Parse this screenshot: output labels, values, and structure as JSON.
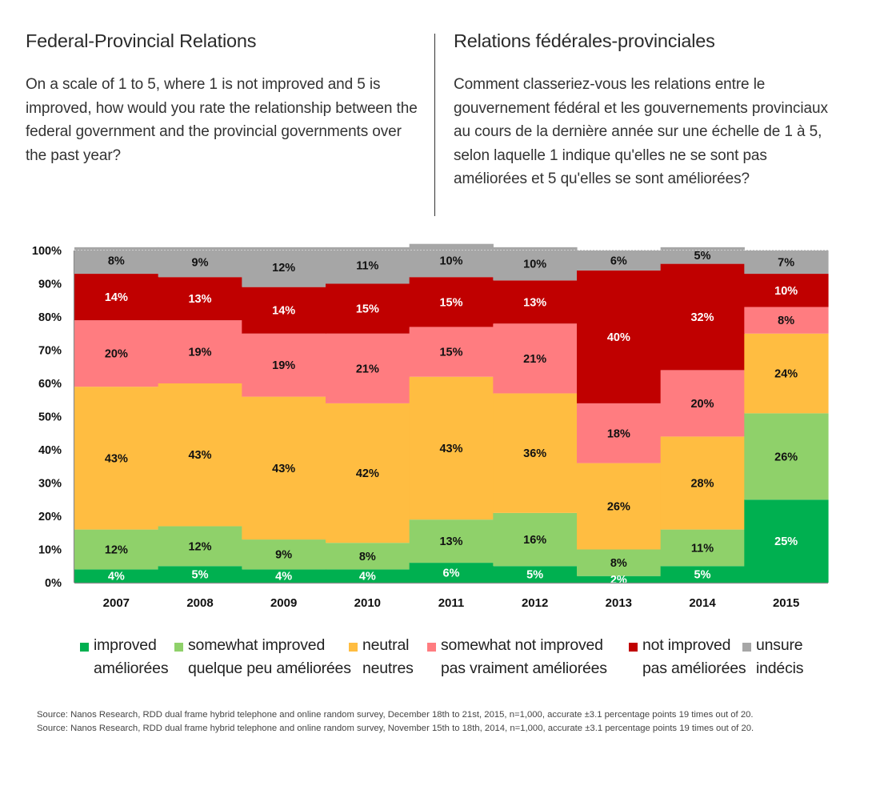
{
  "header": {
    "en": {
      "title": "Federal-Provincial Relations",
      "question": "On a scale of 1 to 5, where 1 is not improved and 5 is improved, how would you rate the relationship between the federal government and the provincial governments over the past year?"
    },
    "fr": {
      "title": "Relations fédérales-provinciales",
      "question": "Comment classeriez-vous les relations entre le gouvernement fédéral et les gouvernements provinciaux au cours de la dernière année sur une échelle de 1 à 5, selon laquelle 1 indique qu'elles ne se sont pas améliorées et 5 qu'elles se sont améliorées?"
    }
  },
  "chart_data": {
    "type": "bar",
    "stacked": true,
    "orientation": "vertical",
    "title": "",
    "xlabel": "",
    "ylabel": "",
    "ylim": [
      0,
      100
    ],
    "yticks": [
      "0%",
      "10%",
      "20%",
      "30%",
      "40%",
      "50%",
      "60%",
      "70%",
      "80%",
      "90%",
      "100%"
    ],
    "categories": [
      "2007",
      "2008",
      "2009",
      "2010",
      "2011",
      "2012",
      "2013",
      "2014",
      "2015"
    ],
    "grid": false,
    "legend_position": "bottom",
    "series": [
      {
        "name": "improved",
        "name_fr": "améliorées",
        "color": "#00b050",
        "label_color": "#ffffff",
        "values": [
          4,
          5,
          4,
          4,
          6,
          5,
          2,
          5,
          25
        ]
      },
      {
        "name": "somewhat improved",
        "name_fr": "quelque peu améliorées",
        "color": "#8fd16a",
        "label_color": "#111111",
        "values": [
          12,
          12,
          9,
          8,
          13,
          16,
          8,
          11,
          26
        ]
      },
      {
        "name": "neutral",
        "name_fr": "neutres",
        "color": "#ffbd41",
        "label_color": "#111111",
        "values": [
          43,
          43,
          43,
          42,
          43,
          36,
          26,
          28,
          24
        ]
      },
      {
        "name": "somewhat not improved",
        "name_fr": "pas vraiment améliorées",
        "color": "#ff7c80",
        "label_color": "#111111",
        "values": [
          20,
          19,
          19,
          21,
          15,
          21,
          18,
          20,
          8
        ]
      },
      {
        "name": "not improved",
        "name_fr": "pas améliorées",
        "color": "#c00000",
        "label_color": "#ffffff",
        "values": [
          14,
          13,
          14,
          15,
          15,
          13,
          40,
          32,
          10
        ]
      },
      {
        "name": "unsure",
        "name_fr": "indécis",
        "color": "#a6a6a6",
        "label_color": "#111111",
        "values": [
          8,
          9,
          12,
          11,
          10,
          10,
          6,
          5,
          7
        ]
      }
    ]
  },
  "sources": [
    "Source: Nanos Research, RDD dual frame hybrid telephone and online random survey, December 18th to 21st, 2015, n=1,000, accurate ±3.1 percentage points 19 times out of 20.",
    "Source: Nanos Research, RDD dual frame hybrid telephone and online random survey, November 15th to 18th, 2014, n=1,000, accurate ±3.1 percentage points 19 times out of 20."
  ]
}
